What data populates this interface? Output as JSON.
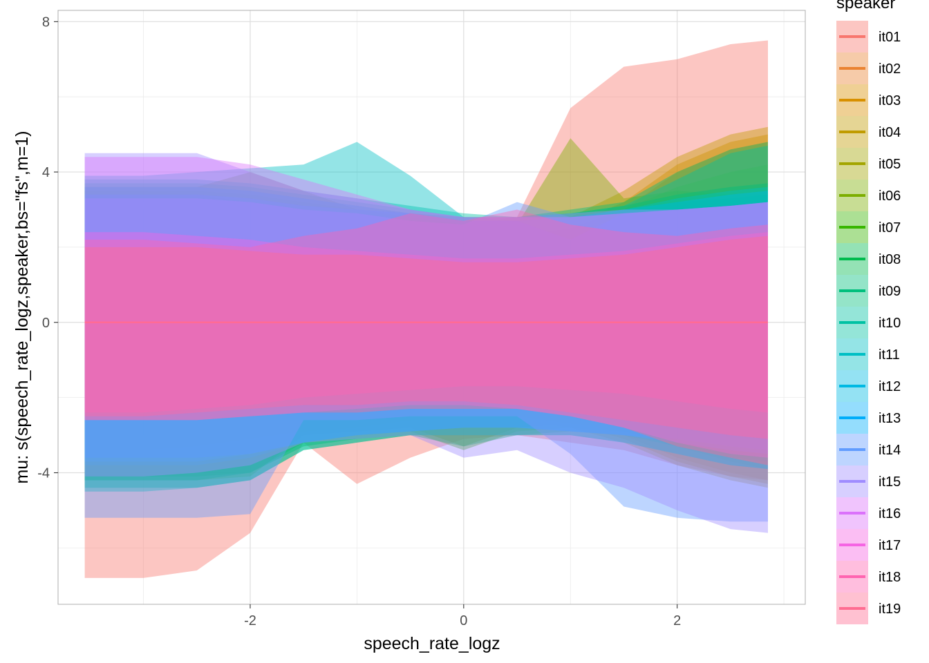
{
  "chart_data": {
    "type": "area",
    "title": "",
    "xlabel": "speech_rate_logz",
    "ylabel": "mu: s(speech_rate_logz,speaker,bs=\"fs\",m=1)",
    "xlim": [
      -3.8,
      3.2
    ],
    "ylim": [
      -7.5,
      8.3
    ],
    "x_ticks": [
      -2,
      0,
      2
    ],
    "y_ticks": [
      -4,
      0,
      4,
      8
    ],
    "grid": true,
    "legend": {
      "title": "speaker",
      "position": "right"
    },
    "x": [
      -3.55,
      -3.0,
      -2.5,
      -2.0,
      -1.5,
      -1.0,
      -0.5,
      0.0,
      0.5,
      1.0,
      1.5,
      2.0,
      2.5,
      2.85
    ],
    "series": [
      {
        "name": "it01",
        "color": "#F8766D",
        "upper": [
          3.2,
          3.2,
          3.1,
          2.9,
          2.6,
          2.3,
          2.5,
          2.6,
          2.8,
          5.7,
          6.8,
          7.0,
          7.4,
          7.5
        ],
        "lower": [
          -6.8,
          -6.8,
          -6.6,
          -5.6,
          -3.2,
          -4.3,
          -3.6,
          -3.1,
          -3.0,
          -3.2,
          -3.4,
          -3.8,
          -4.1,
          -4.2
        ]
      },
      {
        "name": "it02",
        "color": "#EA8331",
        "upper": [
          3.0,
          3.0,
          2.9,
          2.8,
          2.6,
          2.5,
          2.4,
          2.3,
          2.3,
          2.5,
          3.0,
          4.0,
          4.6,
          4.8
        ],
        "lower": [
          -3.0,
          -3.0,
          -2.9,
          -2.7,
          -2.5,
          -2.5,
          -2.4,
          -2.4,
          -2.4,
          -2.6,
          -3.0,
          -3.6,
          -4.0,
          -4.2
        ]
      },
      {
        "name": "it03",
        "color": "#D89000",
        "upper": [
          3.3,
          3.3,
          3.2,
          3.0,
          2.8,
          2.6,
          2.5,
          2.4,
          2.4,
          2.6,
          3.2,
          4.2,
          4.8,
          5.0
        ],
        "lower": [
          -3.3,
          -3.3,
          -3.2,
          -3.0,
          -2.8,
          -2.7,
          -2.6,
          -2.5,
          -2.5,
          -2.7,
          -3.1,
          -3.7,
          -4.1,
          -4.3
        ]
      },
      {
        "name": "it04",
        "color": "#C09B00",
        "upper": [
          3.5,
          3.5,
          3.4,
          3.2,
          3.0,
          2.8,
          2.6,
          2.5,
          2.6,
          2.8,
          3.5,
          4.4,
          5.0,
          5.2
        ],
        "lower": [
          -3.5,
          -3.5,
          -3.4,
          -3.2,
          -3.0,
          -2.8,
          -2.7,
          -2.6,
          -2.6,
          -2.8,
          -3.2,
          -3.8,
          -4.2,
          -4.4
        ]
      },
      {
        "name": "it05",
        "color": "#A3A500",
        "upper": [
          3.4,
          3.4,
          3.4,
          3.3,
          3.1,
          2.9,
          2.7,
          2.5,
          2.5,
          2.7,
          3.0,
          3.6,
          4.0,
          4.2
        ],
        "lower": [
          -3.4,
          -3.4,
          -3.3,
          -3.1,
          -2.9,
          -2.8,
          -2.6,
          -2.5,
          -2.5,
          -2.6,
          -2.9,
          -3.3,
          -3.7,
          -3.9
        ]
      },
      {
        "name": "it06",
        "color": "#7CAE00",
        "upper": [
          3.6,
          3.6,
          3.6,
          4.0,
          3.5,
          3.0,
          2.8,
          2.6,
          2.6,
          4.9,
          3.3,
          3.5,
          3.4,
          3.4
        ],
        "lower": [
          -4.2,
          -4.2,
          -4.2,
          -4.1,
          -3.0,
          -2.9,
          -2.8,
          -3.3,
          -2.8,
          -2.7,
          -2.8,
          -3.2,
          -3.5,
          -3.6
        ]
      },
      {
        "name": "it07",
        "color": "#39B600",
        "upper": [
          3.5,
          3.5,
          3.5,
          3.4,
          3.2,
          3.0,
          2.9,
          2.7,
          2.7,
          2.8,
          3.0,
          3.2,
          3.3,
          3.4
        ],
        "lower": [
          -4.1,
          -4.1,
          -4.1,
          -4.0,
          -3.2,
          -3.0,
          -2.9,
          -3.4,
          -2.9,
          -2.8,
          -2.9,
          -3.2,
          -3.5,
          -3.6
        ]
      },
      {
        "name": "it08",
        "color": "#00BB4E",
        "upper": [
          3.6,
          3.6,
          3.6,
          3.5,
          3.3,
          3.1,
          2.9,
          2.8,
          2.8,
          2.9,
          3.1,
          3.4,
          3.6,
          3.7
        ],
        "lower": [
          -4.2,
          -4.2,
          -4.2,
          -4.0,
          -3.3,
          -3.1,
          -3.0,
          -3.3,
          -3.0,
          -2.9,
          -3.0,
          -3.3,
          -3.6,
          -3.7
        ]
      },
      {
        "name": "it09",
        "color": "#00BF7D",
        "upper": [
          3.7,
          3.7,
          3.7,
          3.6,
          3.4,
          3.2,
          3.0,
          2.8,
          2.8,
          3.0,
          3.2,
          4.0,
          4.6,
          4.8
        ],
        "lower": [
          -4.4,
          -4.4,
          -4.4,
          -4.2,
          -3.4,
          -3.2,
          -3.0,
          -3.0,
          -3.0,
          -3.0,
          -3.2,
          -3.5,
          -3.8,
          -3.9
        ]
      },
      {
        "name": "it10",
        "color": "#00C1A3",
        "upper": [
          3.8,
          3.8,
          3.8,
          3.7,
          3.5,
          3.3,
          3.1,
          2.9,
          2.8,
          2.9,
          3.1,
          3.8,
          4.5,
          4.7
        ],
        "lower": [
          -4.5,
          -4.5,
          -4.4,
          -4.2,
          -3.4,
          -3.2,
          -3.0,
          -3.0,
          -3.0,
          -3.0,
          -3.2,
          -3.5,
          -3.8,
          -3.9
        ]
      },
      {
        "name": "it11",
        "color": "#00BFC4",
        "upper": [
          3.9,
          3.9,
          4.0,
          4.1,
          4.2,
          4.8,
          3.9,
          2.8,
          2.7,
          2.8,
          3.0,
          3.3,
          3.5,
          3.6
        ],
        "lower": [
          -3.8,
          -3.8,
          -3.8,
          -3.6,
          -3.2,
          -3.0,
          -2.9,
          -2.8,
          -2.8,
          -2.9,
          -3.0,
          -3.2,
          -3.4,
          -3.5
        ]
      },
      {
        "name": "it12",
        "color": "#00B9E3",
        "upper": [
          3.6,
          3.6,
          3.6,
          3.5,
          3.3,
          3.1,
          2.9,
          2.7,
          2.7,
          2.8,
          3.0,
          3.2,
          3.4,
          3.5
        ],
        "lower": [
          -3.7,
          -3.7,
          -3.7,
          -3.5,
          -3.2,
          -3.0,
          -2.9,
          -2.8,
          -2.8,
          -2.9,
          -3.0,
          -3.2,
          -3.4,
          -3.5
        ]
      },
      {
        "name": "it13",
        "color": "#00ADFA",
        "upper": [
          3.4,
          3.4,
          3.4,
          3.3,
          3.1,
          3.0,
          2.9,
          2.7,
          2.7,
          2.2,
          2.9,
          3.0,
          3.1,
          3.2
        ],
        "lower": [
          -3.6,
          -3.6,
          -3.6,
          -3.5,
          -3.2,
          -3.0,
          -2.9,
          -2.8,
          -2.8,
          -2.9,
          -3.0,
          -3.1,
          -3.3,
          -3.4
        ]
      },
      {
        "name": "it14",
        "color": "#619CFF",
        "upper": [
          3.3,
          3.3,
          3.3,
          3.2,
          3.0,
          2.9,
          2.7,
          2.6,
          3.2,
          2.8,
          2.9,
          3.0,
          3.1,
          3.2
        ],
        "lower": [
          -5.2,
          -5.2,
          -5.2,
          -5.1,
          -2.6,
          -2.6,
          -2.5,
          -2.5,
          -2.5,
          -3.5,
          -4.9,
          -5.2,
          -5.3,
          -5.3
        ]
      },
      {
        "name": "it15",
        "color": "#9F8CFF",
        "upper": [
          4.5,
          4.5,
          4.5,
          4.0,
          3.5,
          3.3,
          3.0,
          2.8,
          2.8,
          2.9,
          3.0,
          3.0,
          3.1,
          3.2
        ],
        "lower": [
          -4.1,
          -4.1,
          -4.0,
          -3.8,
          -3.2,
          -3.1,
          -3.0,
          -3.6,
          -3.4,
          -4.0,
          -4.4,
          -5.0,
          -5.5,
          -5.6
        ]
      },
      {
        "name": "it16",
        "color": "#DB72FB",
        "upper": [
          4.4,
          4.4,
          4.4,
          4.2,
          3.8,
          3.4,
          3.0,
          2.8,
          2.8,
          2.8,
          2.9,
          3.0,
          3.1,
          3.2
        ],
        "lower": [
          -2.6,
          -2.6,
          -2.6,
          -2.5,
          -2.4,
          -2.3,
          -2.2,
          -2.2,
          -2.3,
          -2.5,
          -2.8,
          -3.2,
          -3.5,
          -3.6
        ]
      },
      {
        "name": "it17",
        "color": "#F564E3",
        "upper": [
          2.4,
          2.4,
          2.3,
          2.2,
          2.0,
          1.9,
          1.8,
          1.7,
          1.7,
          1.8,
          1.9,
          2.1,
          2.3,
          2.4
        ],
        "lower": [
          -2.4,
          -2.4,
          -2.3,
          -2.2,
          -2.0,
          -1.9,
          -1.8,
          -1.7,
          -1.7,
          -1.8,
          -1.9,
          -2.1,
          -2.3,
          -2.4
        ]
      },
      {
        "name": "it18",
        "color": "#FF64B0",
        "upper": [
          2.2,
          2.2,
          2.1,
          2.0,
          2.3,
          2.5,
          2.9,
          2.7,
          3.0,
          2.6,
          2.4,
          2.3,
          2.5,
          2.6
        ],
        "lower": [
          -2.5,
          -2.5,
          -2.4,
          -2.3,
          -2.2,
          -2.2,
          -2.1,
          -2.1,
          -2.2,
          -2.4,
          -2.6,
          -2.8,
          -3.0,
          -3.1
        ]
      },
      {
        "name": "it19",
        "color": "#FF6C91",
        "upper": [
          2.0,
          2.0,
          2.0,
          1.9,
          1.8,
          1.8,
          1.7,
          1.6,
          1.6,
          1.7,
          1.8,
          2.0,
          2.2,
          2.3
        ],
        "lower": [
          -2.6,
          -2.6,
          -2.6,
          -2.5,
          -2.4,
          -2.4,
          -2.3,
          -2.3,
          -2.3,
          -2.5,
          -2.8,
          -3.3,
          -3.6,
          -3.8
        ]
      }
    ]
  }
}
